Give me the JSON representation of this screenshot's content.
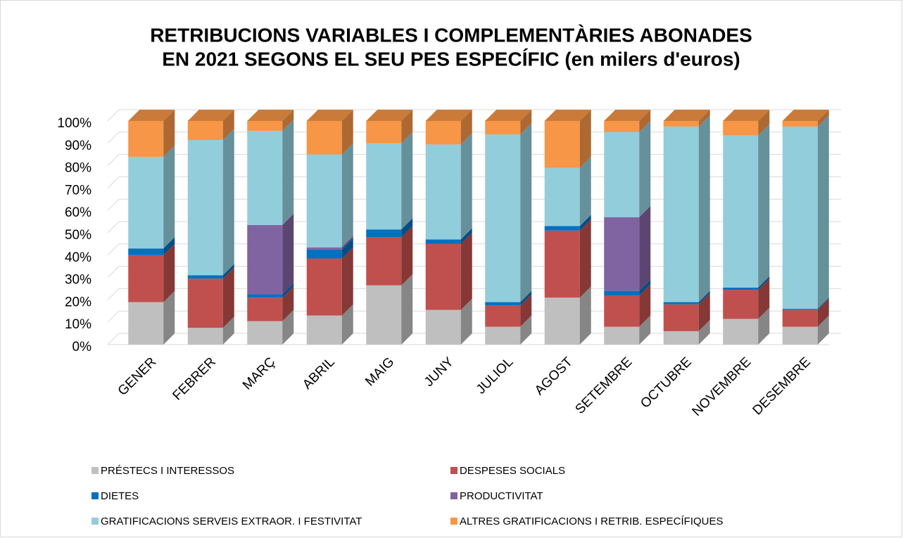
{
  "chart_data": {
    "type": "stacked_bar_3d",
    "title": [
      "RETRIBUCIONS VARIABLES I COMPLEMENTÀRIES ABONADES",
      "EN 2021 SEGONS EL SEU PES ESPECÍFIC (en milers d'euros)"
    ],
    "categories": [
      "GENER",
      "FEBRER",
      "MARÇ",
      "ABRIL",
      "MAIG",
      "JUNY",
      "JULIOL",
      "AGOST",
      "SETEMBRE",
      "OCTUBRE",
      "NOVEMBRE",
      "DESEMBRE"
    ],
    "series": [
      {
        "name": "PRÉSTECS I INTERESSOS",
        "color": "#bfbfbf",
        "values": [
          19,
          7.5,
          10.5,
          13,
          26.5,
          15.5,
          8,
          21,
          8,
          6,
          11.5,
          8
        ]
      },
      {
        "name": "DESPESES SOCIALS",
        "color": "#c0504d",
        "values": [
          21,
          22,
          10.5,
          25.5,
          21.5,
          29.5,
          9.5,
          30,
          14,
          12,
          13,
          7.5
        ]
      },
      {
        "name": "DIETES",
        "color": "#0070c0",
        "values": [
          3,
          1.5,
          1.5,
          4,
          3.5,
          2,
          1.5,
          2,
          2,
          1,
          1,
          0.5
        ]
      },
      {
        "name": "PRODUCTIVITAT",
        "color": "#8064a2",
        "values": [
          0,
          0,
          31,
          1,
          0,
          0,
          0,
          0,
          33,
          0,
          0,
          0
        ]
      },
      {
        "name": "GRATIFICACIONS SERVEIS EXTRAOR. I FESTIVITAT",
        "color": "#92cddc",
        "values": [
          41,
          60.5,
          42,
          41.5,
          38.5,
          42.5,
          75,
          26,
          38,
          78.5,
          68,
          81.5
        ]
      },
      {
        "name": "ALTRES GRATIFICACIONS I RETRIB. ESPECÍFIQUES",
        "color": "#f79646",
        "values": [
          16,
          8.5,
          4.5,
          15,
          10,
          10.5,
          6,
          21,
          5,
          2.5,
          6.5,
          2.5
        ]
      }
    ],
    "ylim": [
      0,
      100
    ],
    "yticks": [
      {
        "value": 0,
        "label": "0%"
      },
      {
        "value": 10,
        "label": "10%"
      },
      {
        "value": 20,
        "label": "20%"
      },
      {
        "value": 30,
        "label": "30%"
      },
      {
        "value": 40,
        "label": "40%"
      },
      {
        "value": 50,
        "label": "50%"
      },
      {
        "value": 60,
        "label": "60%"
      },
      {
        "value": 70,
        "label": "70%"
      },
      {
        "value": 80,
        "label": "80%"
      },
      {
        "value": 90,
        "label": "90%"
      },
      {
        "value": 100,
        "label": "100%"
      }
    ],
    "grid": true,
    "legend": "bottom"
  }
}
